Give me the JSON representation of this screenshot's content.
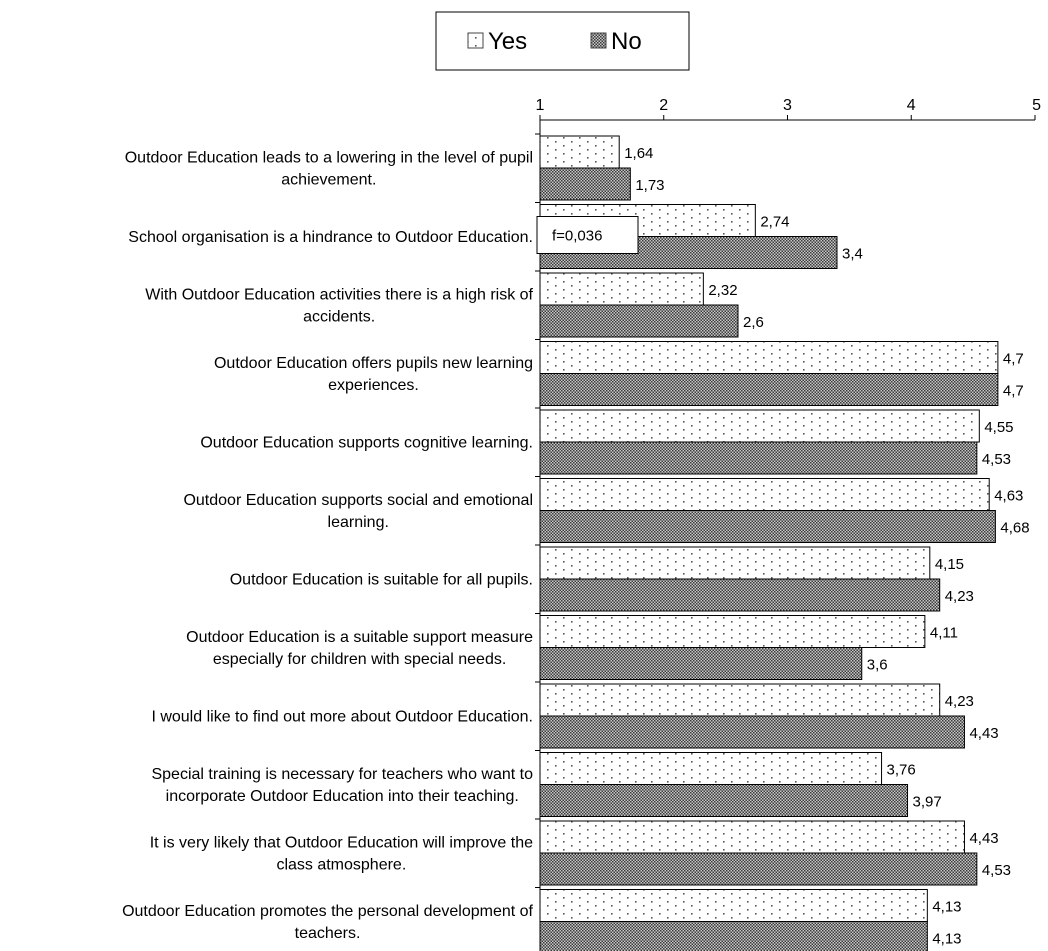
{
  "chart_data": {
    "type": "bar",
    "orientation": "horizontal",
    "xlim": [
      1,
      5
    ],
    "ticks": [
      1,
      2,
      3,
      4,
      5
    ],
    "tick_labels": [
      "1",
      "2",
      "3",
      "4",
      "5"
    ],
    "legend": {
      "placement": "top-center",
      "entries": [
        "Yes",
        "No"
      ]
    },
    "categories": [
      [
        "Outdoor Education leads to a lowering in the level of pupil",
        "achievement."
      ],
      [
        "School organisation is a hindrance to Outdoor Education."
      ],
      [
        "With Outdoor Education activities there is a high risk of",
        "accidents."
      ],
      [
        "Outdoor Education offers pupils new learning",
        "experiences."
      ],
      [
        "Outdoor Education supports cognitive learning."
      ],
      [
        "Outdoor Education supports social and emotional",
        "learning."
      ],
      [
        "Outdoor Education is suitable for all pupils."
      ],
      [
        "Outdoor Education is a suitable support measure",
        "especially for children with special needs."
      ],
      [
        "I would like to find out more about Outdoor Education."
      ],
      [
        "Special training is necessary for teachers who want to",
        "incorporate Outdoor Education into their teaching."
      ],
      [
        "It is very likely that Outdoor Education will improve the",
        "class atmosphere."
      ],
      [
        "Outdoor Education promotes the personal development of",
        "teachers."
      ]
    ],
    "series": [
      {
        "name": "Yes",
        "values": [
          1.64,
          2.74,
          2.32,
          4.7,
          4.55,
          4.63,
          4.15,
          4.11,
          4.23,
          3.76,
          4.43,
          4.13
        ],
        "labels": [
          "1,64",
          "2,74",
          "2,32",
          "4,7",
          "4,55",
          "4,63",
          "4,15",
          "4,11",
          "4,23",
          "3,76",
          "4,43",
          "4,13"
        ]
      },
      {
        "name": "No",
        "values": [
          1.73,
          3.4,
          2.6,
          4.7,
          4.53,
          4.68,
          4.23,
          3.6,
          4.43,
          3.97,
          4.53,
          4.13
        ],
        "labels": [
          "1,73",
          "3,4",
          "2,6",
          "4,7",
          "4,53",
          "4,68",
          "4,23",
          "3,6",
          "4,43",
          "3,97",
          "4,53",
          "4,13"
        ]
      }
    ],
    "annotations": [
      {
        "category_index": 1,
        "text": "f=0,036"
      }
    ]
  }
}
